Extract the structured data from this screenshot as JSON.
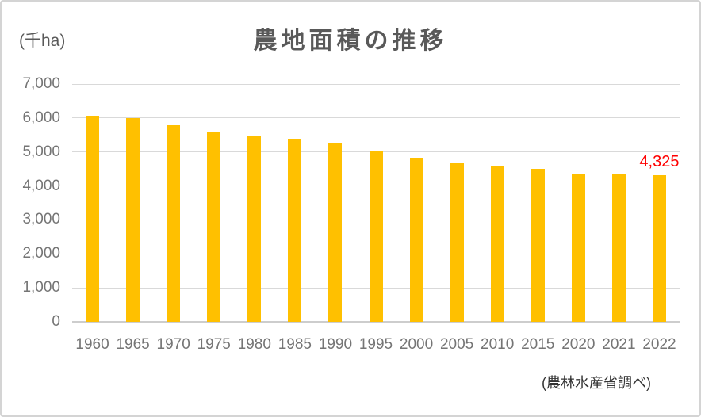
{
  "chart_data": {
    "type": "bar",
    "title": "農地面積の推移",
    "ylabel": "(千ha)",
    "xlabel": "",
    "categories": [
      "1960",
      "1965",
      "1970",
      "1975",
      "1980",
      "1985",
      "1990",
      "1995",
      "2000",
      "2005",
      "2010",
      "2015",
      "2020",
      "2021",
      "2022"
    ],
    "values": [
      6071,
      6004,
      5796,
      5572,
      5461,
      5379,
      5243,
      5038,
      4830,
      4692,
      4593,
      4496,
      4372,
      4349,
      4325
    ],
    "ylim": [
      0,
      7000
    ],
    "ytick_interval": 1000,
    "ytick_labels": [
      "0",
      "1,000",
      "2,000",
      "3,000",
      "4,000",
      "5,000",
      "6,000",
      "7,000"
    ],
    "grid": true,
    "legend": false,
    "bar_color": "#FFC000",
    "gridline_color": "#D9D9D9",
    "zero_line_color": "#CDCDCD",
    "annotation": {
      "text": "4,325",
      "category": "2022",
      "color": "#FF0000"
    },
    "source": "(農林水産省調べ)"
  }
}
